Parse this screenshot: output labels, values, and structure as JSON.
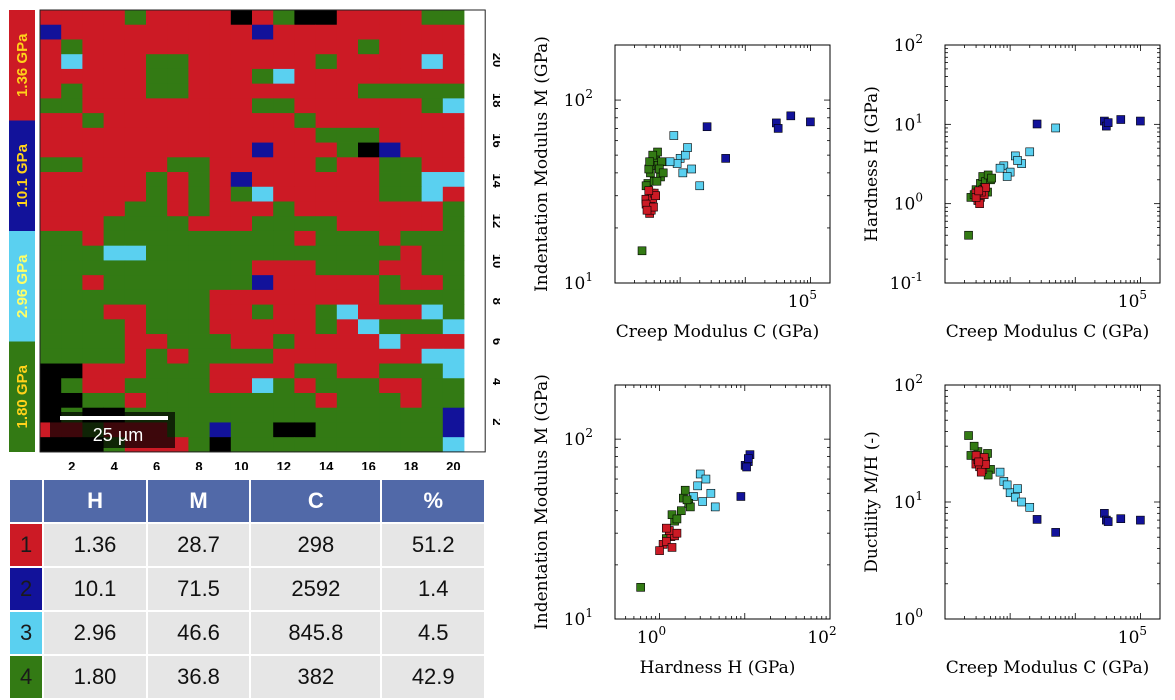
{
  "map": {
    "colorbar_labels": [
      "1.36 GPa",
      "10.1 GPa",
      "2.96 GPa",
      "1.80 GPa"
    ],
    "colorbar_colors": [
      "#cc1a25",
      "#12129a",
      "#5ad0f0",
      "#337a14"
    ],
    "x_ticks": [
      "2",
      "4",
      "6",
      "8",
      "10",
      "12",
      "14",
      "16",
      "18",
      "20"
    ],
    "y_ticks": [
      "2",
      "4",
      "6",
      "8",
      "10",
      "12",
      "14",
      "16",
      "18",
      "20"
    ],
    "scale_bar": "25 µm",
    "class_colors": {
      "1": "#cc1a25",
      "2": "#12129a",
      "3": "#5ad0f0",
      "4": "#337a14",
      "0": "#000000"
    },
    "grid_rows": [
      "11114111101400111144",
      "21111111112111111111",
      "14111111111111141111",
      "13111441111114111131",
      "11111441114311111111",
      "14111441111111144444",
      "44111111114411111143",
      "11411111111141111111",
      "11111111111114441111",
      "11111111112111402111",
      "44111144111114114411",
      "11111414121111114433",
      "11111414143111114431",
      "11114414111411111114",
      "11144441114444111114",
      "44144444444414441444",
      "44433444444444444144",
      "44444444441114441144",
      "44144444442111114114",
      "44444444111111114444",
      "44411444114114311134",
      "44441444111114134443",
      "44441144411411113111",
      "44441414444111111133",
      "00111444111144114443",
      "04114444113414441144",
      "00441444444441444144",
      "04004444444444444442",
      "11411144244004444442",
      "00041114044444444443"
    ]
  },
  "table": {
    "headers": [
      "",
      "H",
      "M",
      "C",
      "%"
    ],
    "rows": [
      {
        "class": "1",
        "color": "#cc1a25",
        "H": "1.36",
        "M": "28.7",
        "C": "298",
        "pct": "51.2"
      },
      {
        "class": "2",
        "color": "#12129a",
        "H": "10.1",
        "M": "71.5",
        "C": "2592",
        "pct": "1.4"
      },
      {
        "class": "3",
        "color": "#5ad0f0",
        "H": "2.96",
        "M": "46.6",
        "C": "845.8",
        "pct": "4.5"
      },
      {
        "class": "4",
        "color": "#337a14",
        "H": "1.80",
        "M": "36.8",
        "C": "382",
        "pct": "42.9"
      }
    ]
  },
  "chart_data": [
    {
      "type": "scatter",
      "xlabel": "Creep Modulus C  (GPa)",
      "ylabel": "Indentation Modulus M  (GPa)",
      "x_scale": "log",
      "y_scale": "log",
      "xlim": [
        100,
        200000
      ],
      "ylim": [
        10,
        200
      ],
      "x_ticks": [
        {
          "base": "10",
          "exp": "5",
          "value": 100000
        }
      ],
      "y_ticks": [
        {
          "base": "10",
          "exp": "2",
          "value": 100
        },
        {
          "base": "10",
          "exp": "1",
          "value": 10
        }
      ],
      "series": [
        {
          "color": "#12129a",
          "points": [
            [
              2592,
              71.5
            ],
            [
              5000,
              48
            ],
            [
              30000,
              75
            ],
            [
              32000,
              70
            ],
            [
              50000,
              82
            ],
            [
              100000,
              76
            ]
          ]
        },
        {
          "color": "#5ad0f0",
          "points": [
            [
              800,
              64
            ],
            [
              1000,
              48
            ],
            [
              1200,
              50
            ],
            [
              900,
              45
            ],
            [
              1500,
              42
            ],
            [
              2000,
              34
            ],
            [
              1100,
              40
            ],
            [
              700,
              46
            ],
            [
              1300,
              55
            ]
          ]
        },
        {
          "color": "#337a14",
          "points": [
            [
              260,
              15
            ],
            [
              300,
              28
            ],
            [
              320,
              35
            ],
            [
              350,
              40
            ],
            [
              380,
              44
            ],
            [
              420,
              47
            ],
            [
              450,
              52
            ],
            [
              500,
              38
            ],
            [
              400,
              36
            ],
            [
              360,
              31
            ],
            [
              330,
              42
            ],
            [
              460,
              44
            ],
            [
              520,
              46
            ],
            [
              380,
              50
            ],
            [
              300,
              34
            ],
            [
              420,
              30
            ],
            [
              440,
              36
            ],
            [
              480,
              42
            ],
            [
              340,
              46
            ],
            [
              550,
              40
            ]
          ]
        },
        {
          "color": "#cc1a25",
          "points": [
            [
              298,
              28.7
            ],
            [
              320,
              26
            ],
            [
              350,
              27
            ],
            [
              380,
              29
            ],
            [
              400,
              31
            ],
            [
              340,
              24
            ],
            [
              360,
              25
            ],
            [
              420,
              30
            ],
            [
              300,
              27
            ],
            [
              330,
              32
            ],
            [
              390,
              26
            ],
            [
              310,
              25
            ]
          ]
        }
      ]
    },
    {
      "type": "scatter",
      "xlabel": "Creep Modulus C  (GPa)",
      "ylabel": "Hardness H  (GPa)",
      "x_scale": "log",
      "y_scale": "log",
      "xlim": [
        100,
        200000
      ],
      "ylim": [
        0.1,
        100
      ],
      "x_ticks": [
        {
          "base": "10",
          "exp": "5",
          "value": 100000
        }
      ],
      "y_ticks": [
        {
          "base": "10",
          "exp": "2",
          "value": 100
        },
        {
          "base": "10",
          "exp": "1",
          "value": 10
        },
        {
          "base": "10",
          "exp": "0",
          "value": 1
        },
        {
          "base": "10",
          "exp": "-1",
          "value": 0.1
        }
      ],
      "series": [
        {
          "color": "#12129a",
          "points": [
            [
              2592,
              10.1
            ],
            [
              28000,
              11
            ],
            [
              30000,
              9.5
            ],
            [
              32000,
              10.5
            ],
            [
              50000,
              11.5
            ],
            [
              100000,
              11
            ]
          ]
        },
        {
          "color": "#5ad0f0",
          "points": [
            [
              800,
              3
            ],
            [
              1000,
              2.5
            ],
            [
              1200,
              4
            ],
            [
              1500,
              3.2
            ],
            [
              2000,
              4.5
            ],
            [
              5000,
              9
            ],
            [
              900,
              2.2
            ],
            [
              700,
              2.8
            ],
            [
              1300,
              3.5
            ]
          ]
        },
        {
          "color": "#337a14",
          "points": [
            [
              230,
              0.4
            ],
            [
              250,
              1.2
            ],
            [
              300,
              1.5
            ],
            [
              350,
              1.8
            ],
            [
              380,
              2.2
            ],
            [
              420,
              1.9
            ],
            [
              450,
              1.4
            ],
            [
              500,
              2.0
            ],
            [
              400,
              1.6
            ],
            [
              320,
              1.1
            ],
            [
              280,
              1.3
            ],
            [
              460,
              2.3
            ],
            [
              520,
              2.1
            ]
          ]
        },
        {
          "color": "#cc1a25",
          "points": [
            [
              298,
              1.36
            ],
            [
              320,
              1.1
            ],
            [
              350,
              1.2
            ],
            [
              380,
              1.5
            ],
            [
              400,
              1.3
            ],
            [
              340,
              1.0
            ],
            [
              360,
              1.4
            ],
            [
              420,
              1.6
            ],
            [
              300,
              1.2
            ],
            [
              330,
              1.45
            ]
          ]
        }
      ]
    },
    {
      "type": "scatter",
      "xlabel": "Hardness H  (GPa)",
      "ylabel": "Indentation Modulus M  (GPa)",
      "x_scale": "log",
      "y_scale": "log",
      "xlim": [
        0.3,
        100
      ],
      "ylim": [
        10,
        200
      ],
      "x_ticks": [
        {
          "base": "10",
          "exp": "0",
          "value": 1
        },
        {
          "base": "10",
          "exp": "2",
          "value": 100
        }
      ],
      "y_ticks": [
        {
          "base": "10",
          "exp": "2",
          "value": 100
        },
        {
          "base": "10",
          "exp": "1",
          "value": 10
        }
      ],
      "series": [
        {
          "color": "#12129a",
          "points": [
            [
              10.1,
              71.5
            ],
            [
              9,
              48
            ],
            [
              11,
              75
            ],
            [
              11.5,
              82
            ],
            [
              10.5,
              70
            ],
            [
              11,
              78
            ]
          ]
        },
        {
          "color": "#5ad0f0",
          "points": [
            [
              3,
              64
            ],
            [
              2.5,
              48
            ],
            [
              4,
              50
            ],
            [
              3.2,
              45
            ],
            [
              4.5,
              42
            ],
            [
              2.8,
              55
            ],
            [
              3.5,
              60
            ]
          ]
        },
        {
          "color": "#337a14",
          "points": [
            [
              0.6,
              15
            ],
            [
              1.2,
              28
            ],
            [
              1.5,
              35
            ],
            [
              1.8,
              40
            ],
            [
              2.2,
              44
            ],
            [
              1.9,
              47
            ],
            [
              2.0,
              52
            ],
            [
              1.4,
              38
            ],
            [
              1.6,
              36
            ],
            [
              1.3,
              31
            ],
            [
              2.3,
              42
            ],
            [
              2.1,
              46
            ]
          ]
        },
        {
          "color": "#cc1a25",
          "points": [
            [
              1.36,
              28.7
            ],
            [
              1.1,
              26
            ],
            [
              1.2,
              27
            ],
            [
              1.5,
              29
            ],
            [
              1.3,
              31
            ],
            [
              1.0,
              24
            ],
            [
              1.4,
              25
            ],
            [
              1.6,
              30
            ],
            [
              1.2,
              32
            ]
          ]
        }
      ]
    },
    {
      "type": "scatter",
      "xlabel": "Creep Modulus C  (GPa)",
      "ylabel": "Ductility M/H  (-)",
      "x_scale": "log",
      "y_scale": "log",
      "xlim": [
        100,
        200000
      ],
      "ylim": [
        1,
        100
      ],
      "x_ticks": [
        {
          "base": "10",
          "exp": "5",
          "value": 100000
        }
      ],
      "y_ticks": [
        {
          "base": "10",
          "exp": "2",
          "value": 100
        },
        {
          "base": "10",
          "exp": "1",
          "value": 10
        },
        {
          "base": "10",
          "exp": "0",
          "value": 1
        }
      ],
      "series": [
        {
          "color": "#12129a",
          "points": [
            [
              2592,
              7.1
            ],
            [
              5000,
              5.5
            ],
            [
              28000,
              8
            ],
            [
              30000,
              7
            ],
            [
              32000,
              6.8
            ],
            [
              50000,
              7.2
            ],
            [
              100000,
              7
            ]
          ]
        },
        {
          "color": "#5ad0f0",
          "points": [
            [
              800,
              15
            ],
            [
              1000,
              12
            ],
            [
              1200,
              11
            ],
            [
              1500,
              10
            ],
            [
              2000,
              9
            ],
            [
              900,
              14
            ],
            [
              700,
              18
            ],
            [
              1300,
              13
            ]
          ]
        },
        {
          "color": "#337a14",
          "points": [
            [
              230,
              37
            ],
            [
              250,
              25
            ],
            [
              300,
              23
            ],
            [
              350,
              22
            ],
            [
              380,
              20
            ],
            [
              420,
              24
            ],
            [
              450,
              26
            ],
            [
              500,
              19
            ],
            [
              400,
              21
            ],
            [
              320,
              27
            ],
            [
              280,
              30
            ],
            [
              460,
              17
            ]
          ]
        },
        {
          "color": "#cc1a25",
          "points": [
            [
              298,
              21.1
            ],
            [
              320,
              23
            ],
            [
              350,
              22
            ],
            [
              380,
              19
            ],
            [
              400,
              24
            ],
            [
              340,
              20
            ],
            [
              360,
              18
            ],
            [
              420,
              21
            ],
            [
              300,
              25
            ],
            [
              330,
              22
            ]
          ]
        }
      ]
    }
  ]
}
